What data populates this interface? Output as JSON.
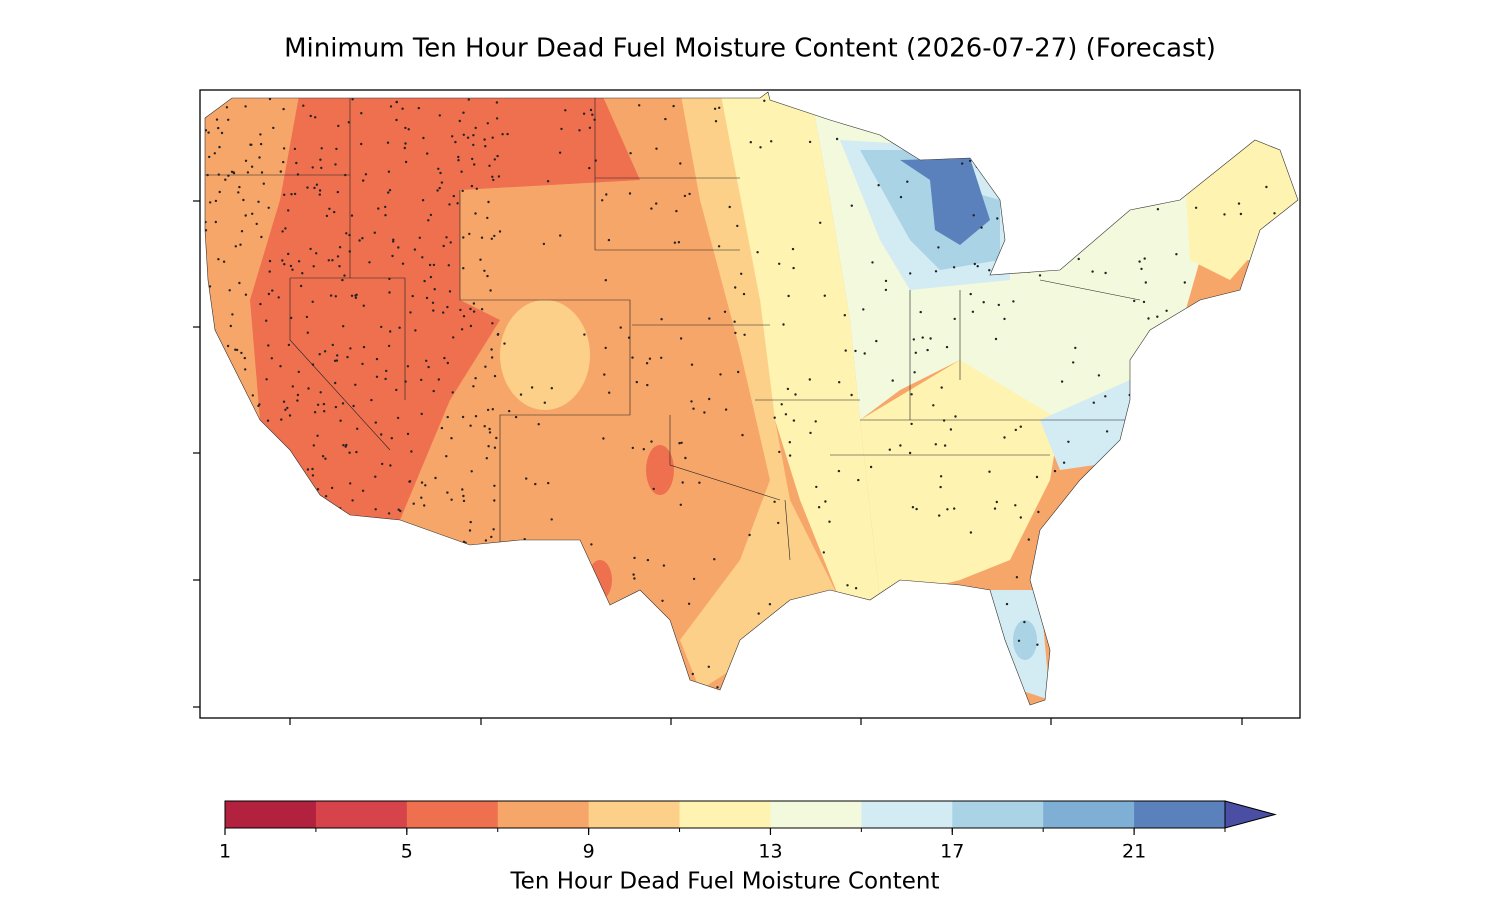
{
  "map": {
    "title": "Minimum Ten Hour Dead Fuel Moisture Content (2026-07-27) (Forecast)",
    "colorbar": {
      "boundaries": [
        1,
        3,
        5,
        7,
        9,
        11,
        13,
        15,
        17,
        19,
        21,
        23
      ],
      "colors": [
        "#b2223f",
        "#d6434b",
        "#ef704f",
        "#f7a66a",
        "#fdd08a",
        "#fef3b0",
        "#f3f9dc",
        "#d3ebf3",
        "#abd3e6",
        "#7fafd4",
        "#5b81bd"
      ],
      "extend_color": "#4a4fa3",
      "ticks": [
        1,
        5,
        9,
        13,
        17,
        21
      ],
      "label": "Ten Hour Dead Fuel Moisture Content"
    }
  }
}
